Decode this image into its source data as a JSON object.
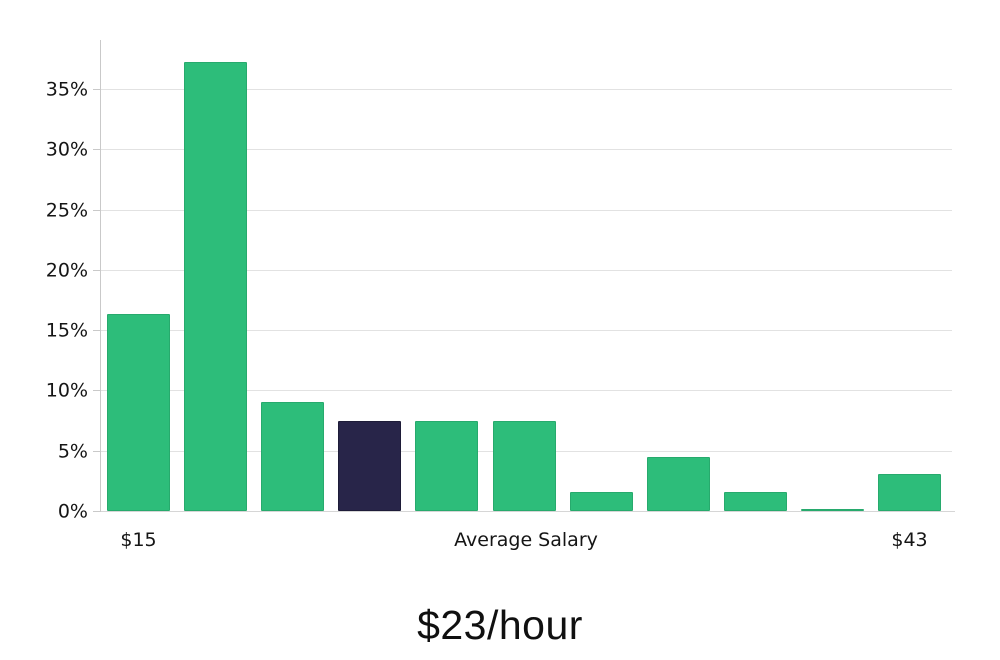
{
  "chart_data": {
    "type": "bar",
    "title": "$23/hour",
    "x_axis_title": "Average Salary",
    "x_first_tick": "$15",
    "x_last_tick": "$43",
    "values": [
      16.3,
      37.2,
      9.0,
      7.5,
      7.5,
      7.5,
      1.6,
      4.5,
      1.6,
      0.15,
      3.1
    ],
    "highlighted_index": 3,
    "yticks": [
      0,
      5,
      10,
      15,
      20,
      25,
      30,
      35
    ],
    "ytick_suffix": "%",
    "ylim": [
      0,
      39
    ],
    "grid": true,
    "legend": null,
    "colors": {
      "bar": "#2dbd7a",
      "highlight": "#282549",
      "gridline": "#e2e2e2",
      "axis": "#c9c9c9",
      "text": "#151515"
    }
  }
}
